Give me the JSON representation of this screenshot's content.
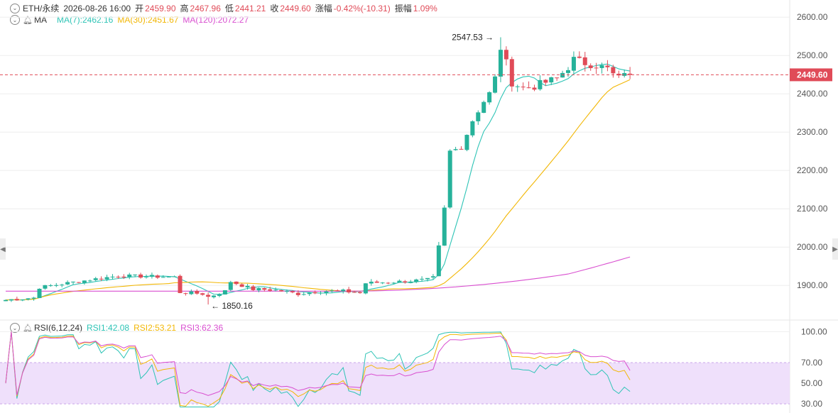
{
  "header": {
    "symbol": "ETH/永续",
    "datetime": "2026-08-26 16:00",
    "open_label": "开",
    "open": "2459.90",
    "high_label": "高",
    "high": "2467.96",
    "low_label": "低",
    "low": "2441.21",
    "close_label": "收",
    "close": "2449.60",
    "change_label": "涨幅",
    "change": "-0.42%(-10.31)",
    "amp_label": "振幅",
    "amp": "1.09%"
  },
  "ma_legend": {
    "title": "MA",
    "ma7": "MA(7):2462.16",
    "ma30": "MA(30):2451.67",
    "ma120": "MA(120):2072.27"
  },
  "rsi_legend": {
    "title": "RSI(6,12,24)",
    "rsi1": "RSI1:42.08",
    "rsi2": "RSI2:53.21",
    "rsi3": "RSI3:62.36"
  },
  "colors": {
    "up": "#26b29a",
    "down": "#e04b58",
    "ma7": "#2ec4b6",
    "ma30": "#f2b705",
    "ma120": "#d94fd0",
    "rsi_band": "#efe0fb",
    "grid": "#eeeeee",
    "axis_text": "#555555"
  },
  "icons": [
    "chevron-down-icon",
    "bell-icon",
    "arrow-left-icon",
    "arrow-right-icon"
  ],
  "chart_data": [
    {
      "type": "candlestick",
      "name": "ETH/永续",
      "y_ticks": [
        1900,
        2000,
        2100,
        2200,
        2300,
        2400,
        2500,
        2600
      ],
      "y_tick_labels": [
        "1900.00",
        "2000.00",
        "2100.00",
        "2200.00",
        "2300.00",
        "2400.00",
        "2500.00",
        "2600.00"
      ],
      "ylim": [
        1830,
        2630
      ],
      "current_price": 2449.6,
      "current_price_label": "2449.60",
      "max_annotation": {
        "value": 2547.53,
        "label": "2547.53",
        "index": 88
      },
      "min_annotation": {
        "value": 1850.16,
        "label": "1850.16",
        "index": 36
      },
      "seed": 7,
      "anchors": [
        [
          0,
          1862
        ],
        [
          5,
          1868
        ],
        [
          6,
          1895
        ],
        [
          15,
          1915
        ],
        [
          20,
          1925
        ],
        [
          30,
          1922
        ],
        [
          31,
          1882
        ],
        [
          35,
          1878
        ],
        [
          36,
          1870
        ],
        [
          39,
          1885
        ],
        [
          40,
          1910
        ],
        [
          44,
          1890
        ],
        [
          48,
          1888
        ],
        [
          52,
          1878
        ],
        [
          56,
          1885
        ],
        [
          60,
          1885
        ],
        [
          63,
          1880
        ],
        [
          64,
          1906
        ],
        [
          70,
          1910
        ],
        [
          75,
          1915
        ],
        [
          76,
          1920
        ],
        [
          77,
          2000
        ],
        [
          78,
          2100
        ],
        [
          79,
          2250
        ],
        [
          81,
          2260
        ],
        [
          83,
          2330
        ],
        [
          85,
          2380
        ],
        [
          86,
          2400
        ],
        [
          87,
          2440
        ],
        [
          88,
          2520
        ],
        [
          89,
          2480
        ],
        [
          90,
          2430
        ],
        [
          92,
          2415
        ],
        [
          94,
          2420
        ],
        [
          96,
          2430
        ],
        [
          98,
          2440
        ],
        [
          100,
          2470
        ],
        [
          101,
          2490
        ],
        [
          103,
          2480
        ],
        [
          105,
          2475
        ],
        [
          107,
          2465
        ],
        [
          108,
          2450
        ],
        [
          109,
          2440
        ],
        [
          110,
          2460
        ],
        [
          111,
          2449.6
        ]
      ],
      "ma_series": [
        {
          "name": "MA(7)",
          "value": 2462.16,
          "period": 7
        },
        {
          "name": "MA(30)",
          "value": 2451.67,
          "period": 30
        },
        {
          "name": "MA(120)",
          "value": 2072.27,
          "period": 120
        }
      ]
    },
    {
      "type": "line",
      "name": "RSI(6,12,24)",
      "y_ticks": [
        30,
        50,
        70,
        100
      ],
      "y_tick_labels": [
        "30.00",
        "50.00",
        "70.00",
        "100.00"
      ],
      "ylim": [
        26,
        103
      ],
      "band": [
        30,
        70
      ],
      "series": [
        {
          "name": "RSI1",
          "value": 42.08
        },
        {
          "name": "RSI2",
          "value": 53.21
        },
        {
          "name": "RSI3",
          "value": 62.36
        }
      ]
    }
  ]
}
